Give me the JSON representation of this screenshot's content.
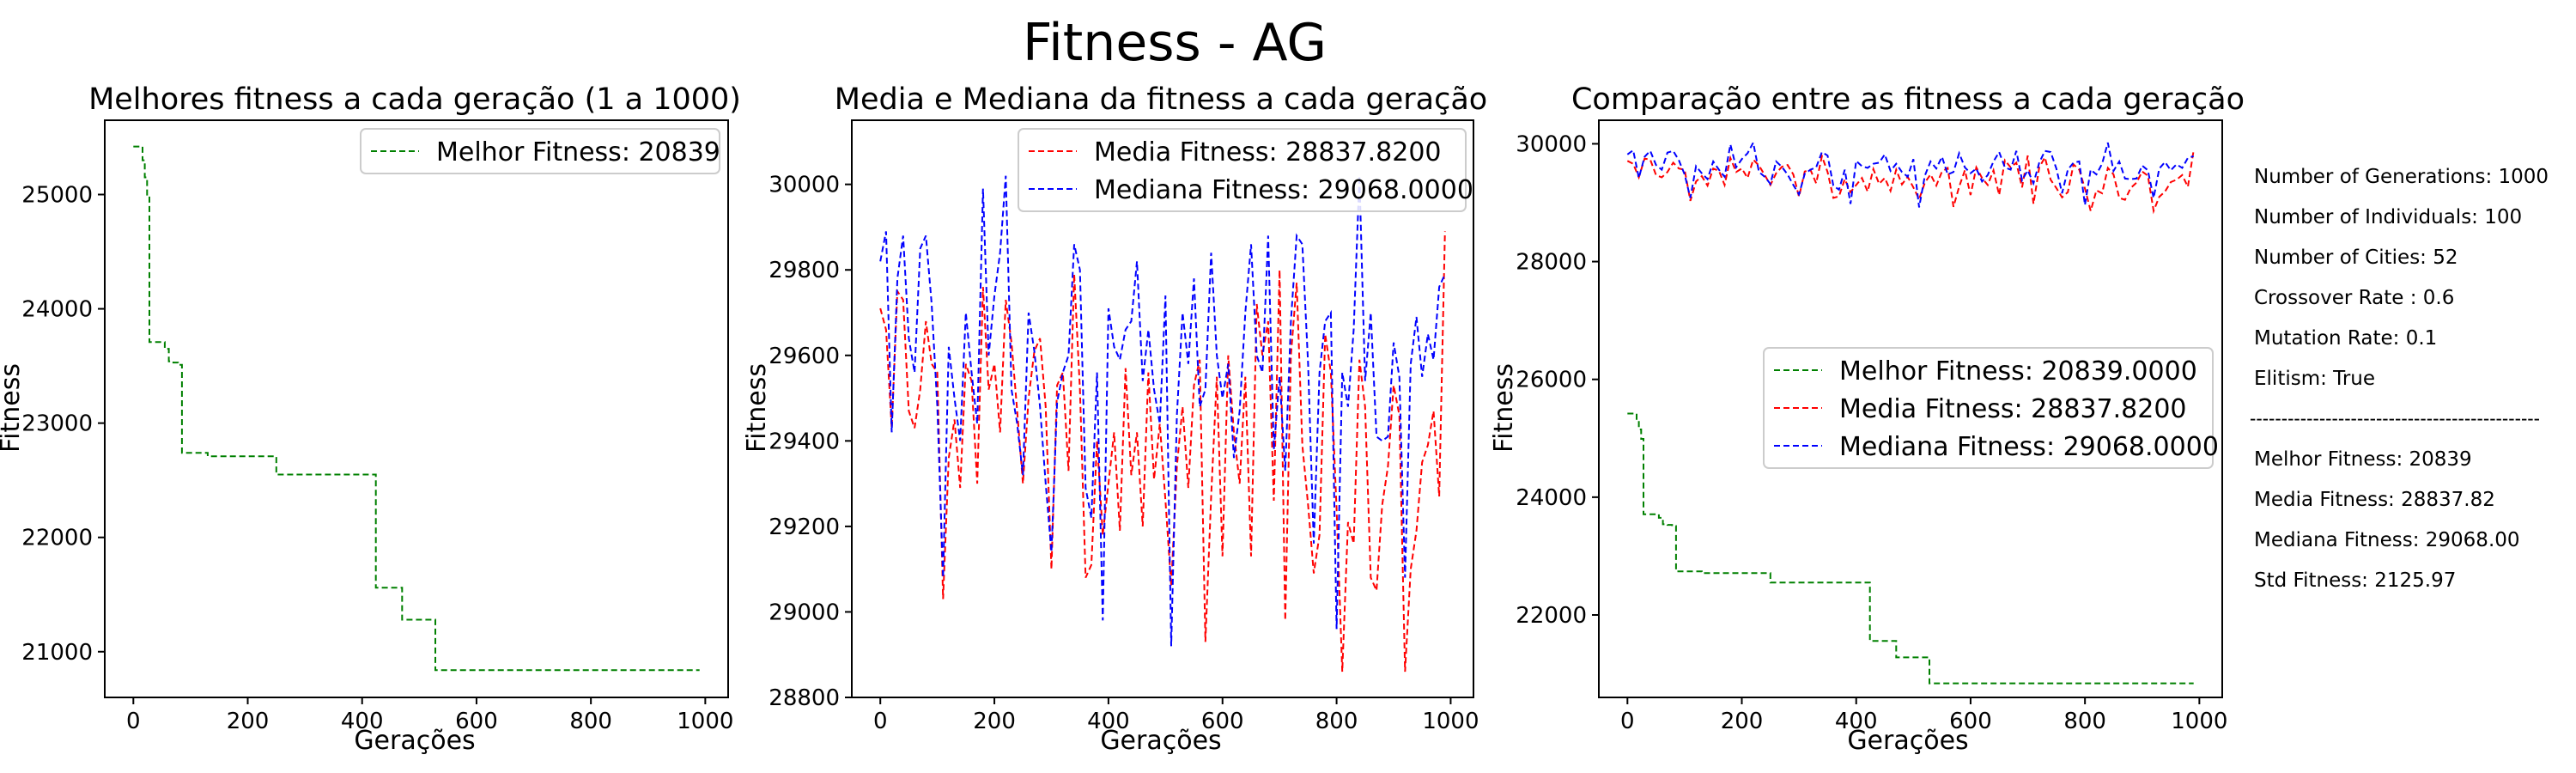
{
  "figure": {
    "suptitle": "Fitness - AG",
    "colors": {
      "melhor": "#008000",
      "media": "#ff0000",
      "mediana": "#0000ff",
      "frame": "#000000"
    }
  },
  "chart_data": [
    {
      "type": "line",
      "title": "Melhores fitness a cada geração (1 a 1000)",
      "xlabel": "Gerações",
      "ylabel": "Fitness",
      "xlim": [
        -50,
        1040
      ],
      "ylim": [
        20600,
        25650
      ],
      "xticks": [
        0,
        200,
        400,
        600,
        800,
        1000
      ],
      "yticks": [
        21000,
        22000,
        23000,
        24000,
        25000
      ],
      "grid": false,
      "legend_position": "top-right",
      "series": [
        {
          "name": "Melhor Fitness: 20839",
          "color": "#008000",
          "style": "dashed",
          "step": true,
          "x": [
            0,
            8,
            16,
            20,
            24,
            28,
            40,
            55,
            62,
            70,
            78,
            85,
            130,
            250,
            420,
            424,
            470,
            528,
            990
          ],
          "y": [
            25420,
            25420,
            25300,
            25150,
            24990,
            23710,
            23710,
            23650,
            23540,
            23530,
            23510,
            22740,
            22710,
            22550,
            22550,
            21560,
            21280,
            20839,
            20839
          ]
        }
      ]
    },
    {
      "type": "line",
      "title": "Media e Mediana da fitness a cada geração",
      "xlabel": "Gerações",
      "ylabel": "Fitness",
      "xlim": [
        -50,
        1040
      ],
      "ylim": [
        28800,
        30150
      ],
      "xticks": [
        0,
        200,
        400,
        600,
        800,
        1000
      ],
      "yticks": [
        28800,
        29000,
        29200,
        29400,
        29600,
        29800,
        30000
      ],
      "grid": false,
      "legend_position": "top-right",
      "series": [
        {
          "name": "Media Fitness: 28837.8200",
          "color": "#ff0000",
          "style": "dashed",
          "x": [
            0,
            10,
            20,
            30,
            40,
            50,
            60,
            70,
            80,
            90,
            100,
            110,
            120,
            130,
            140,
            150,
            160,
            170,
            180,
            190,
            200,
            210,
            220,
            230,
            240,
            250,
            260,
            270,
            280,
            290,
            300,
            310,
            320,
            330,
            340,
            350,
            360,
            370,
            380,
            390,
            400,
            410,
            420,
            430,
            440,
            450,
            460,
            470,
            480,
            490,
            500,
            510,
            520,
            530,
            540,
            550,
            560,
            570,
            580,
            590,
            600,
            610,
            620,
            630,
            640,
            650,
            660,
            670,
            680,
            690,
            700,
            710,
            720,
            730,
            740,
            750,
            760,
            770,
            780,
            790,
            800,
            810,
            820,
            830,
            840,
            850,
            860,
            870,
            880,
            890,
            900,
            910,
            920,
            930,
            940,
            950,
            960,
            970,
            980,
            990
          ],
          "y": [
            29710,
            29660,
            29430,
            29750,
            29730,
            29470,
            29430,
            29520,
            29680,
            29580,
            29560,
            29030,
            29360,
            29450,
            29290,
            29580,
            29540,
            29300,
            29760,
            29520,
            29580,
            29420,
            29730,
            29630,
            29470,
            29300,
            29500,
            29610,
            29640,
            29480,
            29100,
            29530,
            29560,
            29330,
            29790,
            29520,
            29080,
            29110,
            29400,
            29180,
            29300,
            29420,
            29190,
            29570,
            29320,
            29420,
            29200,
            29560,
            29310,
            29440,
            29260,
            29060,
            29340,
            29480,
            29290,
            29530,
            29590,
            28930,
            29270,
            29550,
            29130,
            29600,
            29420,
            29300,
            29550,
            29130,
            29720,
            29600,
            29680,
            29260,
            29800,
            28980,
            29600,
            29770,
            29390,
            29250,
            29090,
            29180,
            29650,
            29560,
            29240,
            28860,
            29210,
            29160,
            29590,
            29480,
            29080,
            29050,
            29250,
            29340,
            29530,
            29460,
            28860,
            29100,
            29190,
            29350,
            29390,
            29470,
            29270,
            29890
          ]
        },
        {
          "name": "Mediana Fitness: 29068.0000",
          "color": "#0000ff",
          "style": "dashed",
          "x": [
            0,
            10,
            20,
            30,
            40,
            50,
            60,
            70,
            80,
            90,
            100,
            110,
            120,
            130,
            140,
            150,
            160,
            170,
            180,
            190,
            200,
            210,
            220,
            230,
            240,
            250,
            260,
            270,
            280,
            290,
            300,
            310,
            320,
            330,
            340,
            350,
            360,
            370,
            380,
            390,
            400,
            410,
            420,
            430,
            440,
            450,
            460,
            470,
            480,
            490,
            500,
            510,
            520,
            530,
            540,
            550,
            560,
            570,
            580,
            590,
            600,
            610,
            620,
            630,
            640,
            650,
            660,
            670,
            680,
            690,
            700,
            710,
            720,
            730,
            740,
            750,
            760,
            770,
            780,
            790,
            800,
            810,
            820,
            830,
            840,
            850,
            860,
            870,
            880,
            890,
            900,
            910,
            920,
            930,
            940,
            950,
            960,
            970,
            980,
            990
          ],
          "y": [
            29820,
            29890,
            29420,
            29780,
            29880,
            29640,
            29560,
            29850,
            29880,
            29720,
            29480,
            29080,
            29620,
            29500,
            29400,
            29700,
            29560,
            29440,
            29990,
            29600,
            29740,
            29840,
            30020,
            29520,
            29440,
            29320,
            29700,
            29610,
            29480,
            29300,
            29140,
            29490,
            29560,
            29600,
            29860,
            29800,
            29290,
            29220,
            29560,
            28980,
            29710,
            29620,
            29590,
            29660,
            29680,
            29820,
            29540,
            29660,
            29520,
            29440,
            29740,
            28920,
            29460,
            29700,
            29580,
            29780,
            29480,
            29520,
            29840,
            29600,
            29500,
            29580,
            29360,
            29470,
            29700,
            29860,
            29600,
            29560,
            29880,
            29380,
            29550,
            29330,
            29680,
            29880,
            29860,
            29580,
            29160,
            29560,
            29680,
            29700,
            28960,
            29560,
            29480,
            29660,
            30020,
            29540,
            29700,
            29410,
            29400,
            29410,
            29630,
            29550,
            29080,
            29580,
            29690,
            29550,
            29650,
            29590,
            29760,
            29790
          ]
        }
      ]
    },
    {
      "type": "line",
      "title": "Comparação entre as fitness a cada geração",
      "xlabel": "Gerações",
      "ylabel": "Fitness",
      "xlim": [
        -50,
        1040
      ],
      "ylim": [
        20600,
        30400
      ],
      "xticks": [
        0,
        200,
        400,
        600,
        800,
        1000
      ],
      "yticks": [
        22000,
        24000,
        26000,
        28000,
        30000
      ],
      "grid": false,
      "legend_position": "center-right",
      "legend_labels": [
        "Melhor Fitness: 20839.0000",
        "Media Fitness: 28837.8200",
        "Mediana Fitness: 29068.0000"
      ],
      "series_ref": "same data as panels 1 and 2"
    }
  ],
  "stats": {
    "config_lines": [
      "Number of Generations: 1000",
      "Number of Individuals: 100",
      "Number of Cities: 52",
      "Crossover Rate : 0.6",
      "Mutation Rate: 0.1",
      "Elitism: True"
    ],
    "separator": "----------------------------------------------",
    "result_lines": [
      "Melhor Fitness: 20839",
      "Media Fitness: 28837.82",
      "Mediana Fitness: 29068.00",
      "Std Fitness: 2125.97"
    ]
  }
}
